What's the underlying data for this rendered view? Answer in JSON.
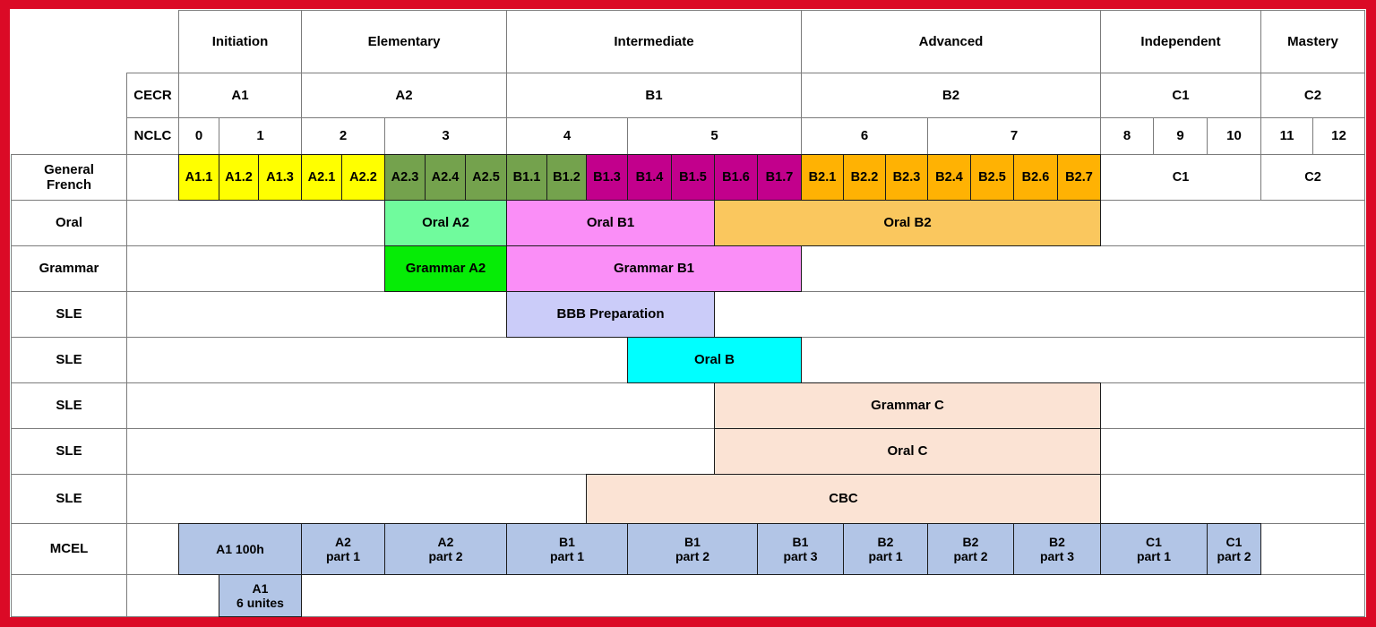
{
  "palette": {
    "frame_red": "#db0a26",
    "white": "#ffffff",
    "yellow": "#ffff00",
    "olive": "#74a24d",
    "magenta": "#c2008c",
    "amber": "#ffb203",
    "amber_light": "#fac75e",
    "mint": "#70fb9d",
    "green": "#06ec06",
    "pink": "#fa8ef7",
    "lavender": "#cbccf9",
    "cyan": "#00ffff",
    "peach": "#fbe3d4",
    "blue": "#b2c5e6"
  },
  "stage_row": {
    "cells": [
      {
        "label": "Initiation",
        "c0": 0,
        "c1": 3
      },
      {
        "label": "Elementary",
        "c0": 3,
        "c1": 8
      },
      {
        "label": "Intermediate",
        "c0": 8,
        "c1": 15
      },
      {
        "label": "Advanced",
        "c0": 15,
        "c1": 22
      },
      {
        "label": "Independent",
        "c0": 22,
        "c1": 25
      },
      {
        "label": "Mastery",
        "c0": 25,
        "c1": 27
      }
    ]
  },
  "cecr_row": {
    "label": "CECR",
    "cells": [
      {
        "label": "A1",
        "c0": 0,
        "c1": 3
      },
      {
        "label": "A2",
        "c0": 3,
        "c1": 8
      },
      {
        "label": "B1",
        "c0": 8,
        "c1": 15
      },
      {
        "label": "B2",
        "c0": 15,
        "c1": 22
      },
      {
        "label": "C1",
        "c0": 22,
        "c1": 25
      },
      {
        "label": "C2",
        "c0": 25,
        "c1": 27
      }
    ]
  },
  "nclc_row": {
    "label": "NCLC",
    "cells": [
      {
        "label": "0",
        "c0": 0,
        "c1": 1
      },
      {
        "label": "1",
        "c0": 1,
        "c1": 3
      },
      {
        "label": "2",
        "c0": 3,
        "c1": 5
      },
      {
        "label": "3",
        "c0": 5,
        "c1": 8
      },
      {
        "label": "4",
        "c0": 8,
        "c1": 11
      },
      {
        "label": "5",
        "c0": 11,
        "c1": 15
      },
      {
        "label": "6",
        "c0": 15,
        "c1": 18
      },
      {
        "label": "7",
        "c0": 18,
        "c1": 22
      },
      {
        "label": "8",
        "c0": 22,
        "c1": 23
      },
      {
        "label": "9",
        "c0": 23,
        "c1": 24
      },
      {
        "label": "10",
        "c0": 24,
        "c1": 25
      },
      {
        "label": "11",
        "c0": 25,
        "c1": 26
      },
      {
        "label": "12",
        "c0": 26,
        "c1": 27
      }
    ]
  },
  "rows": [
    {
      "id": "general-french",
      "head": "General\nFrench",
      "white_cells": [
        [
          "L",
          0
        ]
      ],
      "cells": [
        {
          "label": "A1.1",
          "c0": 0,
          "c1": 1,
          "color": "yellow"
        },
        {
          "label": "A1.2",
          "c0": 1,
          "c1": 2,
          "color": "yellow"
        },
        {
          "label": "A1.3",
          "c0": 2,
          "c1": 3,
          "color": "yellow"
        },
        {
          "label": "A2.1",
          "c0": 3,
          "c1": 4,
          "color": "yellow"
        },
        {
          "label": "A2.2",
          "c0": 4,
          "c1": 5,
          "color": "yellow"
        },
        {
          "label": "A2.3",
          "c0": 5,
          "c1": 6,
          "color": "olive"
        },
        {
          "label": "A2.4",
          "c0": 6,
          "c1": 7,
          "color": "olive"
        },
        {
          "label": "A2.5",
          "c0": 7,
          "c1": 8,
          "color": "olive"
        },
        {
          "label": "B1.1",
          "c0": 8,
          "c1": 9,
          "color": "olive"
        },
        {
          "label": "B1.2",
          "c0": 9,
          "c1": 10,
          "color": "olive"
        },
        {
          "label": "B1.3",
          "c0": 10,
          "c1": 11,
          "color": "magenta"
        },
        {
          "label": "B1.4",
          "c0": 11,
          "c1": 12,
          "color": "magenta"
        },
        {
          "label": "B1.5",
          "c0": 12,
          "c1": 13,
          "color": "magenta"
        },
        {
          "label": "B1.6",
          "c0": 13,
          "c1": 14,
          "color": "magenta"
        },
        {
          "label": "B1.7",
          "c0": 14,
          "c1": 15,
          "color": "magenta"
        },
        {
          "label": "B2.1",
          "c0": 15,
          "c1": 16,
          "color": "amber"
        },
        {
          "label": "B2.2",
          "c0": 16,
          "c1": 17,
          "color": "amber"
        },
        {
          "label": "B2.3",
          "c0": 17,
          "c1": 18,
          "color": "amber"
        },
        {
          "label": "B2.4",
          "c0": 18,
          "c1": 19,
          "color": "amber"
        },
        {
          "label": "B2.5",
          "c0": 19,
          "c1": 20,
          "color": "amber"
        },
        {
          "label": "B2.6",
          "c0": 20,
          "c1": 21,
          "color": "amber"
        },
        {
          "label": "B2.7",
          "c0": 21,
          "c1": 22,
          "color": "amber"
        },
        {
          "label": "C1",
          "c0": 22,
          "c1": 25,
          "color": "white"
        },
        {
          "label": "C2",
          "c0": 25,
          "c1": 27,
          "color": "white"
        }
      ]
    },
    {
      "id": "oral",
      "head": "Oral",
      "white_cells": [
        [
          "L",
          27
        ]
      ],
      "cells": [
        {
          "label": "Oral A2",
          "c0": 5,
          "c1": 8,
          "color": "mint"
        },
        {
          "label": "Oral B1",
          "c0": 8,
          "c1": 13,
          "color": "pink"
        },
        {
          "label": "Oral B2",
          "c0": 13,
          "c1": 22,
          "color": "amber_light"
        }
      ]
    },
    {
      "id": "grammar",
      "head": "Grammar",
      "white_cells": [
        [
          "L",
          27
        ]
      ],
      "cells": [
        {
          "label": "Grammar A2",
          "c0": 5,
          "c1": 8,
          "color": "green"
        },
        {
          "label": "Grammar B1",
          "c0": 8,
          "c1": 15,
          "color": "pink"
        }
      ]
    },
    {
      "id": "sle-bbb",
      "head": "SLE",
      "white_cells": [
        [
          "L",
          27
        ]
      ],
      "cells": [
        {
          "label": "BBB Preparation",
          "c0": 8,
          "c1": 13,
          "color": "lavender"
        }
      ]
    },
    {
      "id": "sle-oral-b",
      "head": "SLE",
      "white_cells": [
        [
          "L",
          27
        ]
      ],
      "cells": [
        {
          "label": "Oral B",
          "c0": 11,
          "c1": 15,
          "color": "cyan"
        }
      ]
    },
    {
      "id": "sle-grammar-c",
      "head": "SLE",
      "white_cells": [
        [
          "L",
          27
        ]
      ],
      "cells": [
        {
          "label": "Grammar C",
          "c0": 13,
          "c1": 22,
          "color": "peach"
        }
      ]
    },
    {
      "id": "sle-oral-c",
      "head": "SLE",
      "white_cells": [
        [
          "L",
          27
        ]
      ],
      "cells": [
        {
          "label": "Oral C",
          "c0": 13,
          "c1": 22,
          "color": "peach"
        }
      ]
    },
    {
      "id": "sle-cbc",
      "head": "SLE",
      "white_cells": [
        [
          "L",
          27
        ]
      ],
      "cells": [
        {
          "label": "CBC",
          "c0": 10,
          "c1": 22,
          "color": "peach"
        }
      ]
    },
    {
      "id": "mcel",
      "head": "MCEL",
      "white_cells": [
        [
          "L",
          0
        ],
        [
          25,
          27
        ]
      ],
      "cells": [
        {
          "label": "A1 100h",
          "c0": 0,
          "c1": 3,
          "color": "blue"
        },
        {
          "label": "A2\npart 1",
          "c0": 3,
          "c1": 5,
          "color": "blue"
        },
        {
          "label": "A2\npart 2",
          "c0": 5,
          "c1": 8,
          "color": "blue"
        },
        {
          "label": "B1\npart 1",
          "c0": 8,
          "c1": 11,
          "color": "blue"
        },
        {
          "label": "B1\npart 2",
          "c0": 11,
          "c1": 14,
          "color": "blue"
        },
        {
          "label": "B1\npart 3",
          "c0": 14,
          "c1": 16,
          "color": "blue"
        },
        {
          "label": "B2\npart 1",
          "c0": 16,
          "c1": 18,
          "color": "blue"
        },
        {
          "label": "B2\npart 2",
          "c0": 18,
          "c1": 20,
          "color": "blue"
        },
        {
          "label": "B2\npart 3",
          "c0": 20,
          "c1": 22,
          "color": "blue"
        },
        {
          "label": "C1\npart 1",
          "c0": 22,
          "c1": 24,
          "color": "blue"
        },
        {
          "label": "C1\npart 2",
          "c0": 24,
          "c1": 25,
          "color": "blue"
        }
      ]
    },
    {
      "id": "bottom",
      "head": "",
      "white_cells": [
        [
          "L",
          1
        ],
        [
          3,
          27
        ]
      ],
      "cells": [
        {
          "label": "A1\n6 unites",
          "c0": 1,
          "c1": 3,
          "color": "blue"
        }
      ]
    }
  ]
}
